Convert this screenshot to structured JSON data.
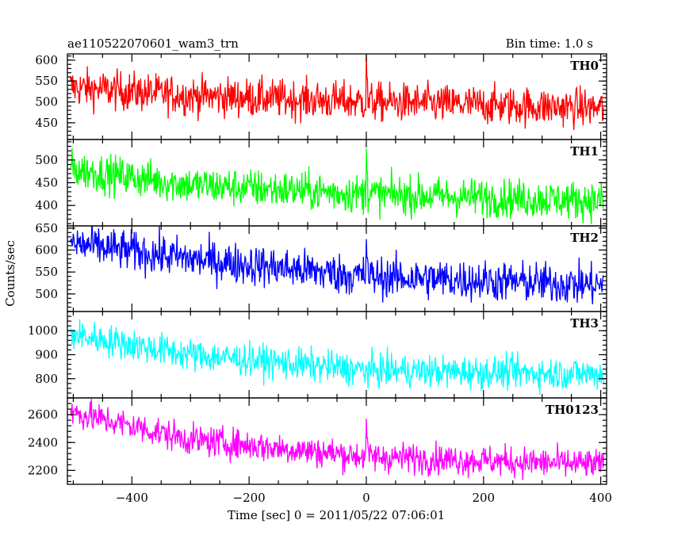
{
  "chart_data": {
    "type": "line",
    "title_left": "ae110522070601_wam3_trn",
    "title_right": "Bin time: 1.0 s",
    "xlabel": "Time [sec] 0 = 2011/05/22 07:06:01",
    "ylabel": "Counts/sec",
    "xlim": [
      -510,
      410
    ],
    "x_ticks": [
      -400,
      -200,
      0,
      200,
      400
    ],
    "bin_time_s": 1.0,
    "panels": [
      {
        "name": "TH0",
        "color": "#ff0000",
        "ylim": [
          410,
          615
        ],
        "y_ticks": [
          450,
          500,
          550,
          600
        ],
        "trend": [
          [
            -505,
            535
          ],
          [
            -300,
            515
          ],
          [
            0,
            500
          ],
          [
            400,
            485
          ]
        ],
        "noise": 55,
        "spike": {
          "x": 0,
          "value": 612
        }
      },
      {
        "name": "TH1",
        "color": "#00ff00",
        "ylim": [
          355,
          545
        ],
        "y_ticks": [
          400,
          450,
          500
        ],
        "trend": [
          [
            -505,
            480
          ],
          [
            -300,
            445
          ],
          [
            0,
            425
          ],
          [
            400,
            410
          ]
        ],
        "noise": 50,
        "spike": {
          "x": 0,
          "value": 525
        }
      },
      {
        "name": "TH2",
        "color": "#0000ff",
        "ylim": [
          460,
          655
        ],
        "y_ticks": [
          500,
          550,
          600,
          650
        ],
        "trend": [
          [
            -505,
            615
          ],
          [
            -300,
            580
          ],
          [
            0,
            540
          ],
          [
            400,
            520
          ]
        ],
        "noise": 55,
        "spike": {
          "x": 0,
          "value": 625
        }
      },
      {
        "name": "TH3",
        "color": "#00ffff",
        "ylim": [
          720,
          1080
        ],
        "y_ticks": [
          800,
          900,
          1000
        ],
        "trend": [
          [
            -505,
            985
          ],
          [
            -300,
            900
          ],
          [
            0,
            835
          ],
          [
            400,
            820
          ]
        ],
        "noise": 80,
        "spike": null
      },
      {
        "name": "TH0123",
        "color": "#ff00ff",
        "ylim": [
          2100,
          2720
        ],
        "y_ticks": [
          2200,
          2400,
          2600
        ],
        "trend": [
          [
            -505,
            2620
          ],
          [
            -300,
            2420
          ],
          [
            0,
            2300
          ],
          [
            400,
            2240
          ]
        ],
        "noise": 130,
        "spike": {
          "x": 0,
          "value": 2570
        }
      }
    ]
  }
}
